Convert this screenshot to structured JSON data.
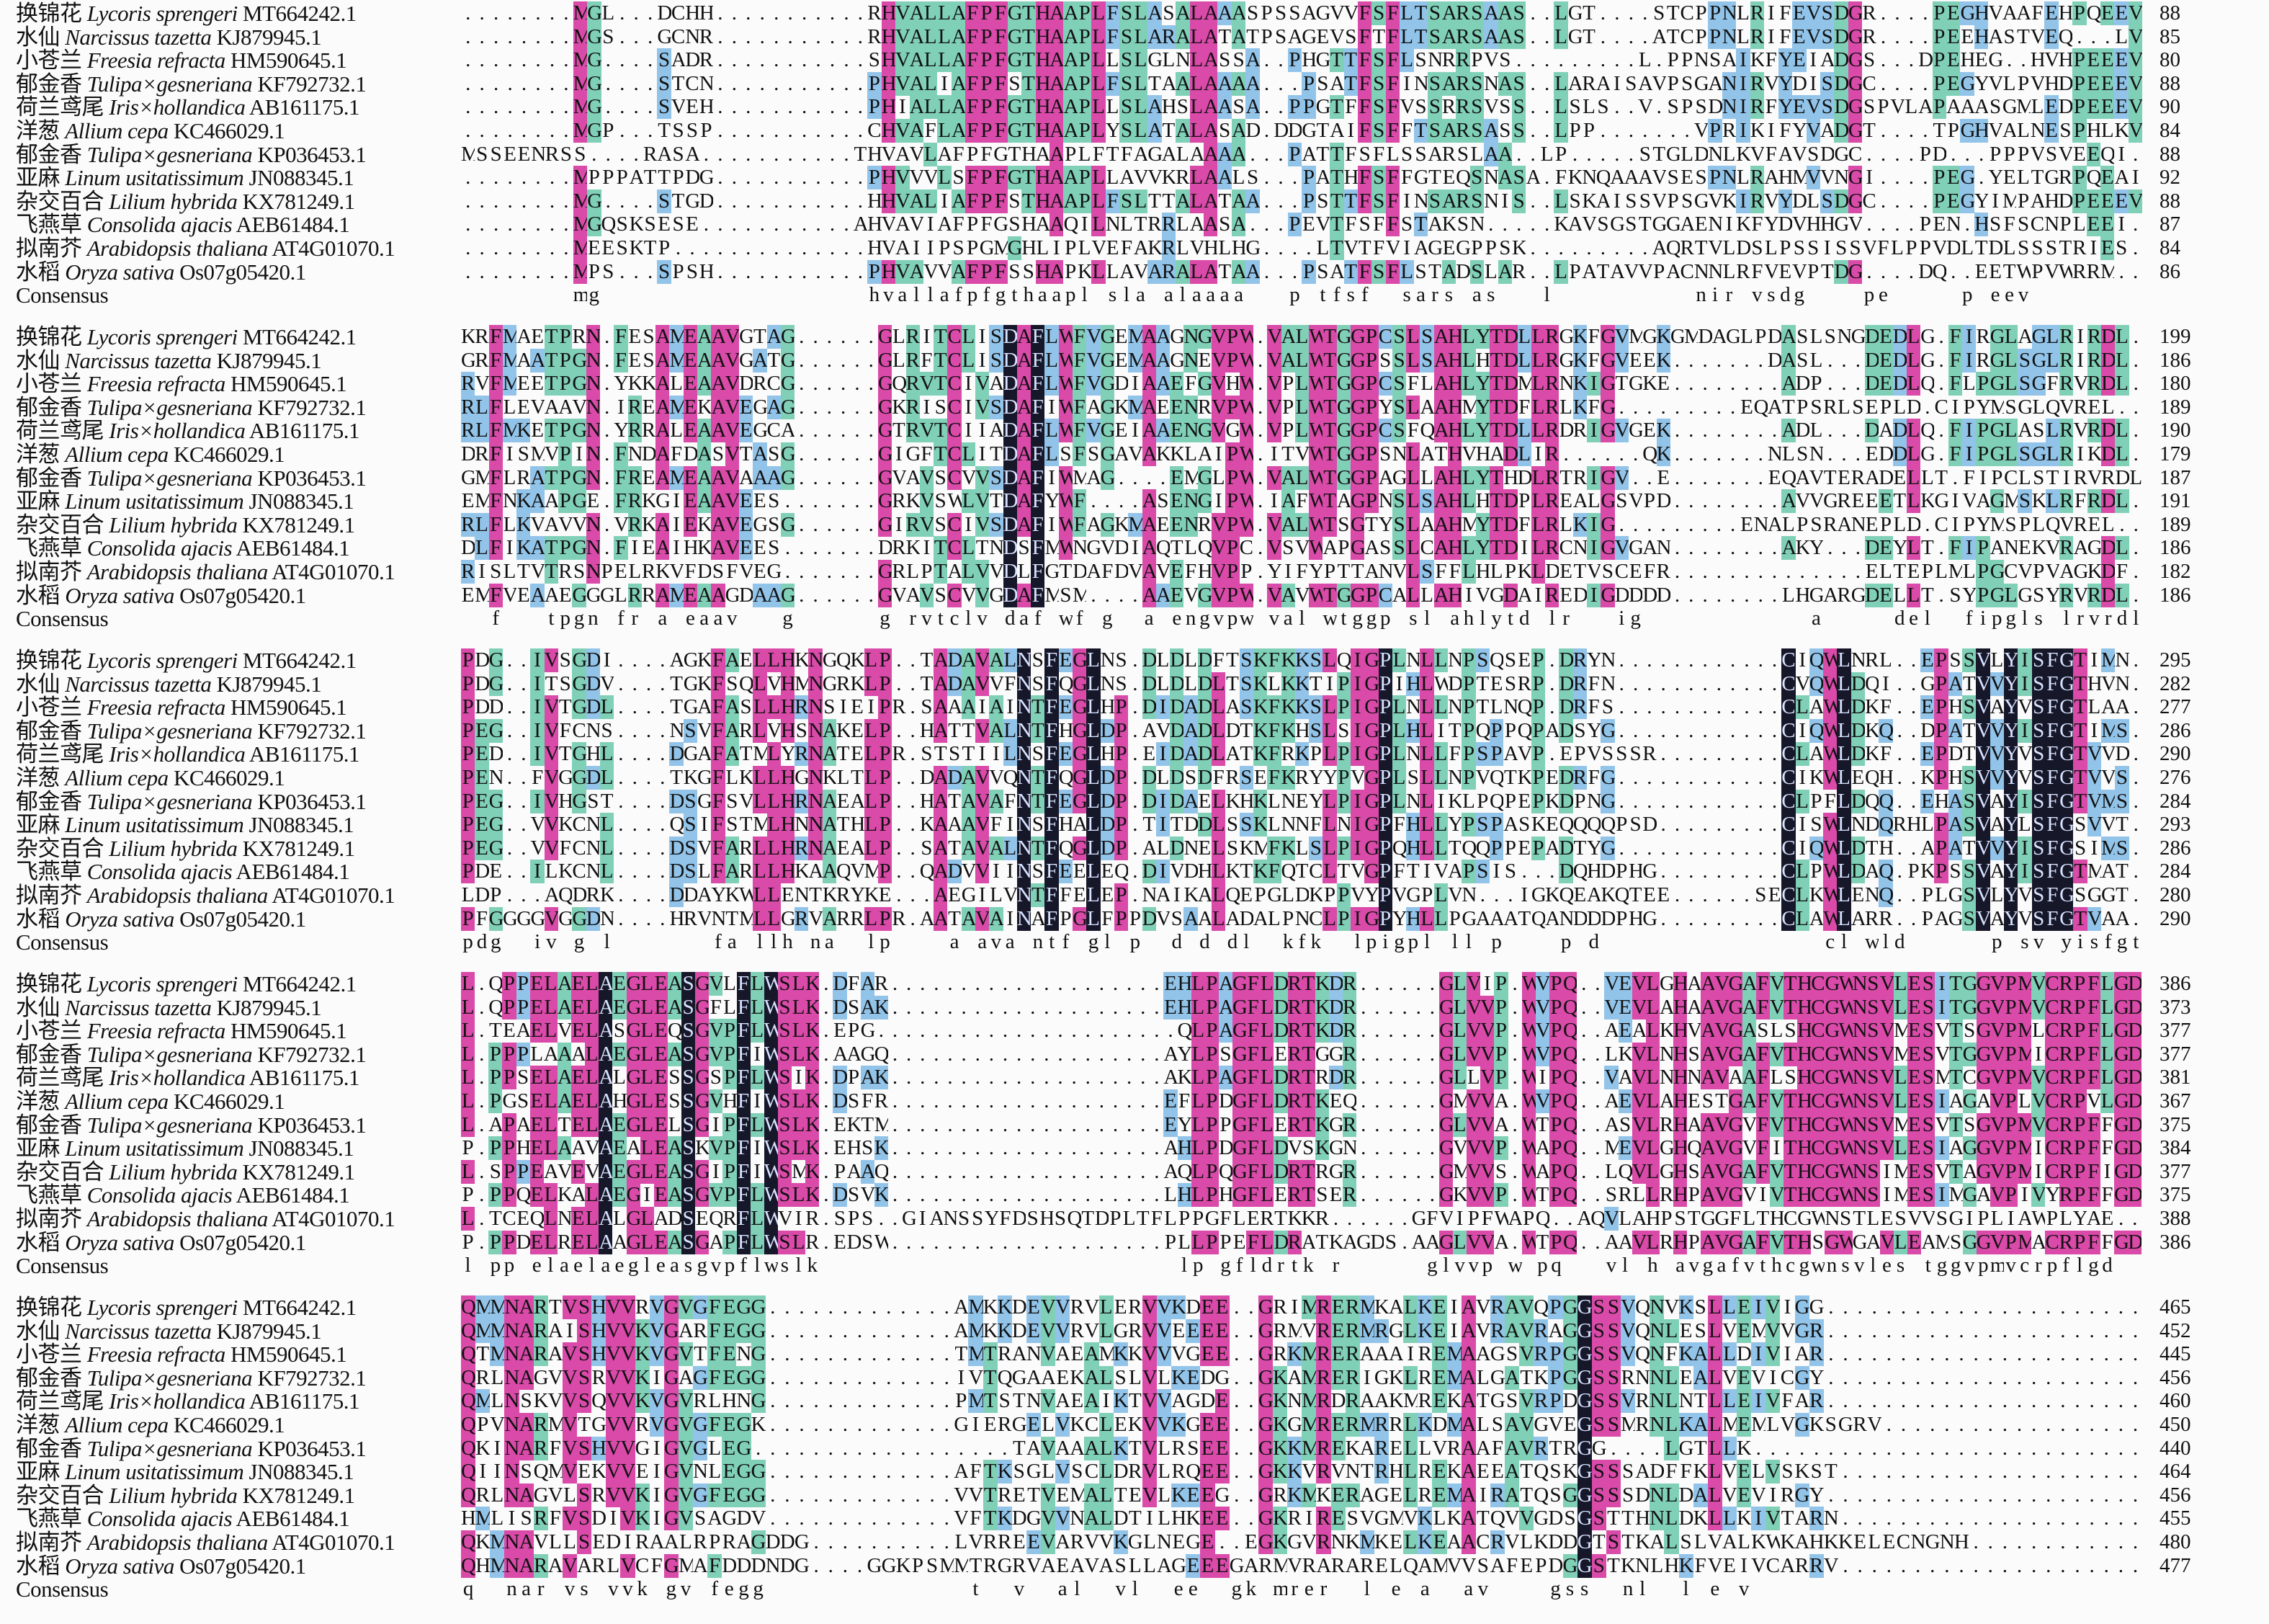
{
  "species": [
    {
      "cn": "换锦花",
      "latin": "Lycoris sprengeri",
      "acc": "MT664242.1"
    },
    {
      "cn": "水仙",
      "latin": "Narcissus tazetta",
      "acc": "KJ879945.1"
    },
    {
      "cn": "小苍兰",
      "latin": "Freesia refracta",
      "acc": "HM590645.1"
    },
    {
      "cn": "郁金香",
      "latin": "Tulipa×gesneriana",
      "acc": "KF792732.1"
    },
    {
      "cn": "荷兰鸢尾",
      "latin": "Iris×hollandica",
      "acc": "AB161175.1"
    },
    {
      "cn": "洋葱",
      "latin": "Allium cepa",
      "acc": "KC466029.1"
    },
    {
      "cn": "郁金香",
      "latin": "Tulipa×gesneriana",
      "acc": "KP036453.1"
    },
    {
      "cn": "亚麻",
      "latin": "Linum usitatissimum",
      "acc": "JN088345.1"
    },
    {
      "cn": "杂交百合",
      "latin": "Lilium hybrida",
      "acc": "KX781249.1"
    },
    {
      "cn": "飞燕草",
      "latin": "Consolida ajacis",
      "acc": "AEB61484.1"
    },
    {
      "cn": "拟南芥",
      "latin": "Arabidopsis thaliana",
      "acc": "AT4G01070.1"
    },
    {
      "cn": "水稻",
      "latin": "Oryza sativa",
      "acc": "Os07g05420.1"
    }
  ],
  "consensus_label": "Consensus",
  "colors": {
    "identical": "#17172a",
    "high": "#d94aa9",
    "medium": "#80d0b8",
    "low": "#92c4ea"
  },
  "blocks": [
    {
      "seqs": [
        "........MGL...DCHH...........RHVALLAFPFGTHAAPLFSLASALAAASPSSAGVVFSFLTSARSAAS..LGT....STCPPNLRIFEVSDGR....PEGHVAAFEHPQEEV",
        "........MGS...GCNR...........RHVALLAFPFGTHAAPLFSLARALATATPSAGEVSFTFLTSARSAAS..LGT....ATCPPNLRIFEVSDGR....PEEHASTVEQ...LV",
        "........MG....SADR...........SHVALLAFPFGTHAAPLLSLGLNLASSA..PHGTTFSFLSNRRPVS.........L.PPNSAIKFYEIADGS...DPEHEG..HVHPEEEV",
        "........MG....STCN...........PHVALIAFPFSTHAAPLFSLTAALAAAA...PSATFSFINSARSNAS..LARAISAVPSGANIRVYDISDGC....PEGYVLPVHDPEEEV",
        "........MG....SVEH...........PHIALLAFPFGTHAAPLLSLAHSLAASA..PPGTFFSFVSSRRSVSS..LSLS..V.SPSDNIRFYEVSDGSPVLAPAAASGMLEDPEEEV",
        "........MGP...TSSP...........CHVAFLAFPFGTHAAPLYSLATALASAD.DDGTAIFSFFTSARSASS..LPP.......VPRIKIFYVADGT....TPGHVALNESPHLKV",
        "MSSEENRSS....RASA...........THVAVLAFPFGTHAAPLFTFAGALAAAA...PATTFSFLSSARSLAA..LP.....STGLDNLKVFAVSDGC....PD...PPPVSVEEQI",
        "........MPPPATTPDG...........PHVVVLSFPFGTHAAPLLAVVKRLAALS...PATHFSFFGTEQSNASA.FKNQAAAVSESPNLRAHMVVNGI....PEG.YELTGRPQEAI",
        "........MG....STGD...........HHVALIAFPFSTHAAPLFSLTTALATAA...PSTTFSFINSARSNIS..LSKAISSVPSGVKIRVYDLSDGC....PEGYIMPAHDPEEEV",
        "........MGQSKSESE...........AHVAVIAFPFGSHAAQILNLTRRLAASA...PEVTFSFFSTAKSN.....KAVSGSTGGAENIKFYDVHHGV....PEN.HSFSCNPLEEI",
        "........MEESKTP..............HVAIIPSPGMGHLIPLVEFAKRLVHLHG....LTVTFVIAGEGPPSK.........AQRTVLDSLPSSISSVFLPPVDLTDLSSSTRIES",
        "........MPS...SPSH...........PHVAVVAFPFSSHAPKLLAVARALATAA...PSATFSFLSTADSLAR..LPATAVVPACNNLRFVEVPTDG....DQ..EETWPVWRRM"
      ],
      "ends": [
        "88",
        "85",
        "80",
        "88",
        "90",
        "84",
        "88",
        "92",
        "88",
        "87",
        "84",
        "86"
      ],
      "consensus": "        mg                   hvallafpfgthaapl sla alaaaa   p tfsf  sars as   l          nir vsdg    pe     p eev"
    },
    {
      "seqs": [
        "KRFMAETPRN.FESAMEAAVGTAG......GLRITCLISDAFLWFVGEMAAGNGVPW.VALWTGGPCSLSAHLYTDLLRGKFGVMGKGMDAGLPDASLSNGDEDLG.FIRGLAGLRIRDL",
        "GRFMAATPGN.FESAMEAAVGATG......GLRFTCLISDAFLWFVGEMAAGNEVPW.VALWTGGPSSLSAHLHTDLLRGKFGVEEK.......DASL...DEDLG.FIRGLSGLRIRDL",
        "RVFMEETPGN.YKKALEAAVDRCG......GQRVTCIVADAFLWFVGDIAAEFGVHW.VPLWTGGPCSFLAHLYTDMLRNKIGTGKE........ADP...DEDLQ.FLPGLSGFRVRDL",
        "RLFLEVAAVN.IREAMEKAVEGAG......GKRISCIVSDAFIWFAGKMAEENRVPW.VPLWTGGPYSLAAHMYTDFLRLKFG.........EQATPSRLSEPLD.CIPYMSGLQVREL",
        "RLFMKETPGN.YRRALEAAVEGCA......GTRVTCIIADAFLWFVGEIAAENGVGW.VPLWTGGPCSFQAHLYTDLLRDRIGVGEK........ADL...DADLQ.FIPGLASLRVRDL",
        "DRFISMVPIN.FNDAFDASVTASG......GIGFTCLITDAFLSFSGAVAKKLAIPW.ITVWTGGPSNLATHVHADLIR......QK.......NLSN...EDDLG.FIPGLSGLRIKDL",
        "GMFLRATPGN.FREAMEAAVAAAG......GVAVSCVVSDAFIWMAG....EMGLPW.VALWTGGPAGLLAHLYTHDLRTRIGV..E.......EQAVTERADELLT.FIPCLSTIRVRDL",
        "EMFNKAAPGE.FRKGIEAAVEES.......GRKVSWLVTDAFYWF....ASENGIPW.IAFWTAGPNSLSAHLHTDPLREALGSVPD........AVVGREEETLKGIVAGMSKLRFRDL",
        "RLFLKVAVVN.VRKAIEKAVEGSG......GIRVSCIVSDAFIWFAGKMAEENRVPW.VALWTSGTYSLAAHMYTDFLRLKIG.........ENALPSRANEPLD.CIPYMSPLQVREL",
        "DLFIKATPGN.FIEAIHKAVEES.......DRKITCLTNDSFMWNGVDIAQTLQVPC.VSVWAPGASSLCAHLYTDILRCNIGVGAN........AKY...DEYLT.FIPANEKVRAGDL",
        "RISLTVTRSNPELRKVFDSFVEG.......GRLPTALVVDLFGTDAFDVAVEFHVPP.YIFYPTTANVLSFFLHLPKLDETVSCEFR..............ELTEPLMLPGCVPVAGKDF",
        "EMFVEAAEGGGLRRAMEAAGDAAG......GVAVSCVVGDAFMSM....AAEVGVPW.VAVWTGGPCALLAHIVGDAIREDIGDDDD........LHGARGDELLT.SYPGLGSYRVRDL"
      ],
      "ends": [
        "199",
        "186",
        "180",
        "189",
        "190",
        "179",
        "187",
        "191",
        "189",
        "186",
        "182",
        "186"
      ],
      "consensus": "  f   tpgn fr a eaav   g      g rvtclv daf wf g  a engvpw val wtggp sl ahlytd lr   ig            a     del  fipgls lrvrdl"
    },
    {
      "seqs": [
        "PDG..IVSGDI....AGKFAELLHKNGQKLP..TADAVALNSFEGLNS.DLDLDFTSKFKKSLQIGPLNLLNPSQSEP.DRYN............CIQWLNRL..EPSSVLYISFGTIMN",
        "PDG..ITSGDV....TGKFSQLVHMNGRKLP..TADAVVFNSFQGLNS.DLDLDLTSKLKKTIPIGPIHLWDPTESRP.DRFN............CVQWLDQI..GPATVVYISFGTHVN",
        "PDD..IVTGDL....TGAFASLLHRNSIEIPR.SAAAIAINTFEGLHP.DIDADLASKFKKSLPIGPLNLLNPTLNQP.DRFS............CLAWLDKF..EPHSVAYVSFGTLAA",
        "PEG..IVFCNS....NSVFARLVHSNAKELP..HATTVALNTFHGLDP.AVDADLDTKFKHSLSIGPLHLITPQPPQPADSYG............CIQWLDKQ..DPATVVYISFGTIMS",
        "PED..IVTGHL....DGAFATMLYRNATELPR.STSTIILNSFEGLHP.EIDADLATKFRKPLPIGPLNLLFPSPAVP.EPVSSSR.........CLAWLDKF..EPDTVVYVSFGTVVD",
        "PEN..FVGGDL....TKGFLKLLHGNKLTLP..DADAVVQNTFQGLDP.DLDSDFRSEFKRYYPVGPLSLLNPVQTKPEDRFG............CIKWLEQH..KPHSVVYVSFGTVVS",
        "PEG..IVHGST....DSGFSVLLHRNAEALP..HATAVAFNTFEGLDP.DIDAELKHKLNEYLPIGPLNLIKLPQPEPKDPNG............CLPFLDQQ..EHASVAYISFGTVMS",
        "PEG..VVKCNL....QSIFSTMLHNNATHLP..KAAAVFINSFHALDP.TITDDLSSKLNNFLNIGPFHLLYPSPASKEQQQQPSD.........CISWLNDQRHLPASVAYLSFGSVVT",
        "PEG..VVFCNL....DSVFARLLHRNAEALP..SATAVALNTFQGLDP.ALDNELSKMFKLSLPIGPQHLLTQQPPEPADTYG............CIQWLDTH..APATVVYISFGSIMS",
        "PDE..ILKCNL....DSLFARLLHKAAQVMP..QADVVIINSFEELEQ.DIVDHLKTKFQTCLTVGPFTIVAPSIS...DQHDPHG.........CLPWLDAQ.PKPSSVAYISFGTMAT",
        "LDP...AQDRK....DDAYKWLLENTKRYKE...AEGILVNTFFELEP.NAIKALQEPGLDKPPVYPVGPLVN...IGKQEAKQTEE......SECLKWLENQ..PLGSVLYVSFGSGGT",
        "PFGGGGVGGDN....HRVNTMLLGRVARRLPR.AATAVAINAFPGLFPPDVSAALADALPNCLPIGPYHLLPGAAATQANDDDPHG.........CLAWLARR..PAGSVAYVSFGTVAA"
      ],
      "ends": [
        "295",
        "282",
        "277",
        "286",
        "290",
        "276",
        "284",
        "293",
        "286",
        "284",
        "280",
        "290"
      ],
      "consensus": "pdg  iv g l       fa llh na  lp    a ava ntf gl p  d d dl  kfk  lpigpl ll p    p d                cl wld      p sv yisfgt"
    },
    {
      "seqs": [
        "L.QPPELAELAEGLEASGVLFLWSLK.DFAR....................EHLPAGFLDRTKDR......GLVIP.WVPQ..VEVLGHAAVGAFVTHCGWNSVLESITGGVPMVCRPFLGD",
        "L.QPPELAELAEGLEASGFLFLWSLK.DSAK....................EHLPAGFLDRTKDR......GLVVP.WVPQ..VEVLAHAAVGAFVTHCGWNSVLESITGGVPMVCRPFLGD",
        "L.TEAELVELASGLEQSGVPFLWSLK.EPG......................QLPAGFLDRTKDR......GLVVP.WVPQ..AEALKHVAVGASLSHCGWNSVMESVTSGVPMLCRPFLGD",
        "L.PPPLAAALAEGLEASGVPFIWSLK.AAGQ....................AYLPSGFLERTGGR......GLVVP.WVPQ..LKVLNHSAVGAFVTHCGWNSVMESVTGGVPMICRPFLGD",
        "L.PPSELAELALGLESSGSPFLWSIK.DPAK....................AKLPAGFLDRTRDR......GLLVP.WIPQ..VAVLNHNAVAAFLSHCGWNSVLESMTCGVPMVCRPFLGD",
        "L.PGSELAELAHGLESSGVHFIWSLK.DSFR....................EFLPDGFLDRTKEQ......GMVVA.WVPQ..AEVLAHESTGAFVTHCGWNSVLESIAGAVPLVCRPVLGD",
        "L.APAELTELAEGLELSGIPFLWSLK.EKTM....................EYLPPGFLERTKGR......GLVVA.WTPQ..ASVLRHAAVGVFVTHCGWNSVMESVTSGVPMVCRPFFGD",
        "P.PPHELAAVAEALEASKVPFIWSLK.EHSK....................AHLPDGFLDVSKGN......GVVVP.WAPQ..MEVLGHQAVGVFITHCGWNSVLESIAGGVPMICRPFFGD",
        "L.SPPEAVEVAEGLEASGIPFIWSMK.PAAQ....................AQLPQGFLDRTRGR......GMVVS.WAPQ..LQVLGHSAVGAFVTHCGWNSIMESVTAGVPMICRPFIGD",
        "P.PPQELKALAEGIEASGVPFLWSLK.DSVK....................LHLPHGFLERTSER......GKVVP.WTPQ..SRLLRHPAVGVIVTHCGWNSIMESIMGAVPIVYRPFFGD",
        "L.TCEQLNELALGLADSEQRFLWVIR.SPS..GIANSSYFDSHSQTDPLTFLPPGFLERTKKR......GFVIPFWAPQ..AQVLAHPSTGGFLTHCGWNSTLESVVSGIPLIAWPLYAE",
        "P.PPDELRELAAGLEASGAPFLWSLR.EDSW....................PLLPPEFLDRATKAGDS.AAGLVVA.WTPQ..AAVLRHPAVGAFVTHSGWGAVLEAMSGGVPMACRPFFGD"
      ],
      "ends": [
        "386",
        "373",
        "377",
        "377",
        "381",
        "367",
        "375",
        "384",
        "377",
        "375",
        "388",
        "386"
      ],
      "consensus": "l pp elaelaegleasgvpflwslk                          lp gfldrtk r      glvvp w pq   vl h avgafvthcgwnsvles tggvpmvcrpflgd"
    },
    {
      "seqs": [
        "QMMNARTVSHVVRVGVGFEGG.............AMKKDEVVRVLERVVKDEE..GRIMRERMKALKEIAVRAVQPGGSSVQNVKSLLEIVIGG......................",
        "QMMNARAISHVVKVGARFEGG.............AMKKDEVVRVLGRVVEEEE..GRMVRERMRGLKEIAVRAVRAGGSSVQNLESLVEMVVGR......................",
        "QTMNARAVSHVVKVGVTFENG.............TMTRANVAEAMKKVVVGEE..GRKMRERAAAIREMAAGSVRPGGSSVQNFKALLDIVIAR......................",
        "QRLNAGVVSRVVKIGAGFEGG.............IVTQGAAEKALSLVLKEDG..GKAMRERIGKLREMALGATKPGGSSRNNLEALVEVICGY......................",
        "QMLNSKVVSQVVKVGVRLHNG.............PMTSTNVAEAIKTVVAGDE..GKNMRDRAAKMREKATGSVRPDGSSVRNLNTLLEIVFAR......................",
        "QPVNARMVTGVVRVGVGFEGK.............GIERGELVKCLEKVVKGEE..GKGMRERMRRLKDMALSAVGVEGSSMRNLKALMEMLVGKSGRV..................",
        "QKINARFVSHVVGIGVGLEG..................TAVAAALKTVLRSEE..GKKMREKARELLVRAAFAVRTRGG....LGTLLK..........................",
        "QIINSQMVEKVVEIGVNLEGG.............AFTKSGLVSCLDRVLRQEE..GKKVRVNTRHLREKAEEATQSKGSSSADFFKLVELVSKST....................",
        "QRLNAGVLSRVVKIGVGFEGG.............VVTRETVEMALTEVLKEEG..GRKMKERAGELREMAIRATQSGGSSSDNLDALVEVIRGY......................",
        "HMLISRFVSDIVKIGVSAGDV.............VFTKDGVVNALDTILHKEE..GKRIRESVGMVKLKATQVVGDSGSTTHNLDKLLKIVTARN.....................",
        "QKMNAVLLSEDIRAALRPRAGDDG..........LVRREEVARVVKGLNEGE..EGKGVRNKMKELKEAACRVLKDDGTSTKALSLVALKWKAHKKELECNGNH...........",
        "QHMNARAVARLVCFGMAFDDDNDG....GGKPSMMTRGRVAEAVASLLAGEEEGARMVRARARELQAMVVSAFEPDGGSTKNLHKFVEIVCARRV....................."
      ],
      "ends": [
        "465",
        "452",
        "445",
        "456",
        "460",
        "450",
        "440",
        "464",
        "456",
        "455",
        "480",
        "477"
      ],
      "consensus": "q  nar vs vvk gv fegg              t  v  al  vl  ee  gk mrer  l e a  av    gss  nl  l e v"
    }
  ]
}
